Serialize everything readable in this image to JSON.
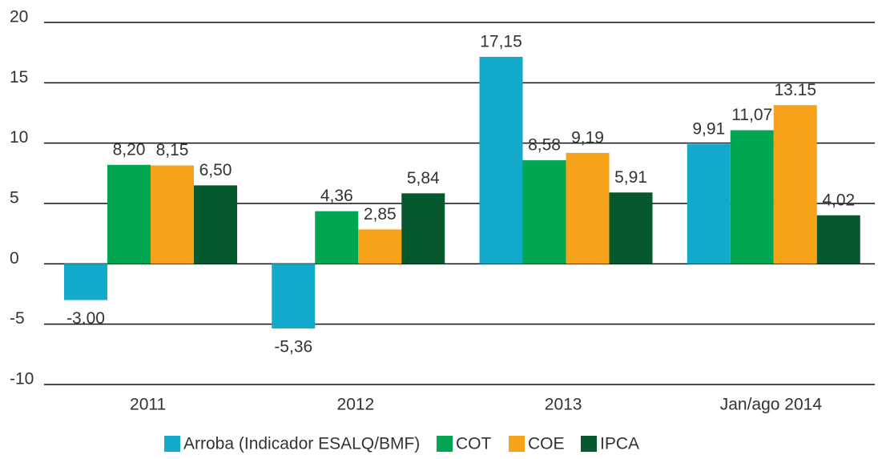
{
  "chart_data": {
    "type": "bar",
    "categories": [
      "2011",
      "2012",
      "2013",
      "Jan/ago 2014"
    ],
    "series": [
      {
        "name": "Arroba (Indicador ESALQ/BMF)",
        "color": "#12a9cb",
        "values": [
          -3.0,
          -5.36,
          17.15,
          9.91
        ],
        "value_labels": [
          "-3.00",
          "-5,36",
          "17,15",
          "9,91"
        ]
      },
      {
        "name": "COT",
        "color": "#00a651",
        "values": [
          8.2,
          4.36,
          8.58,
          11.07
        ],
        "value_labels": [
          "8,20",
          "4,36",
          "8,58",
          "11,07"
        ]
      },
      {
        "name": "COE",
        "color": "#f7a21b",
        "values": [
          8.15,
          2.85,
          9.19,
          13.15
        ],
        "value_labels": [
          "8,15",
          "2,85",
          "9,19",
          "13.15"
        ]
      },
      {
        "name": "IPCA",
        "color": "#06592d",
        "values": [
          6.5,
          5.84,
          5.91,
          4.02
        ],
        "value_labels": [
          "6,50",
          "5,84",
          "5,91",
          "4,02"
        ]
      }
    ],
    "ylim": [
      -10,
      20
    ],
    "yticks": [
      -10,
      -5,
      0,
      5,
      10,
      15,
      20
    ],
    "grid": true,
    "legend": "bottom"
  }
}
